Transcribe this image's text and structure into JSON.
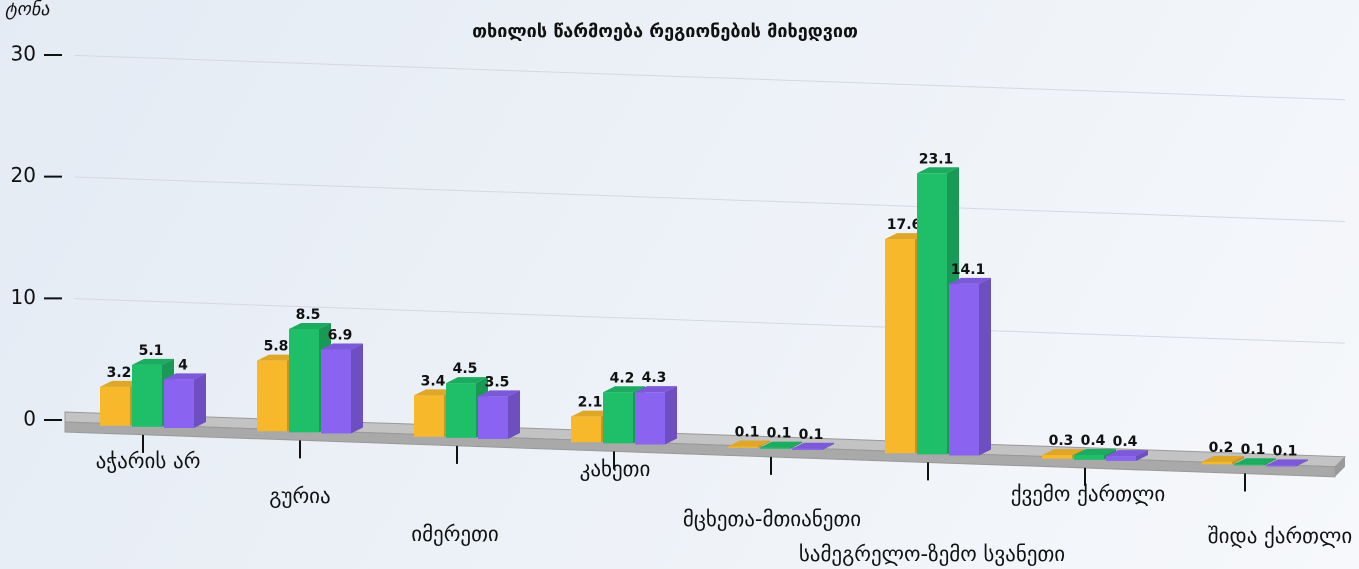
{
  "chart_data": {
    "type": "bar3d",
    "title": "თხილის წარმოება რეგიონების მიხედვით",
    "y_label": "ათ. ტონა",
    "categories": [
      "აჭარის არ",
      "გურია",
      "იმერეთი",
      "კახეთი",
      "მცხეთა-მთიანეთი",
      "სამეგრელო-ზემო სვანეთი",
      "ქვემო ქართლი",
      "შიდა ქართლი"
    ],
    "series": [
      {
        "color": "#f7b92b",
        "values": [
          3.2,
          5.8,
          3.4,
          2.1,
          0.1,
          17.6,
          0.3,
          0.2
        ]
      },
      {
        "color": "#1fbf6a",
        "values": [
          5.1,
          8.5,
          4.5,
          4.2,
          0.1,
          23.1,
          0.4,
          0.1
        ]
      },
      {
        "color": "#8a63f0",
        "values": [
          4,
          6.9,
          3.5,
          4.3,
          0.1,
          14.1,
          0.4,
          0.1
        ]
      }
    ],
    "ylim": [
      0,
      30
    ],
    "yticks": [
      0,
      10,
      20,
      30
    ],
    "grid": true,
    "value_labels_shown": true
  }
}
